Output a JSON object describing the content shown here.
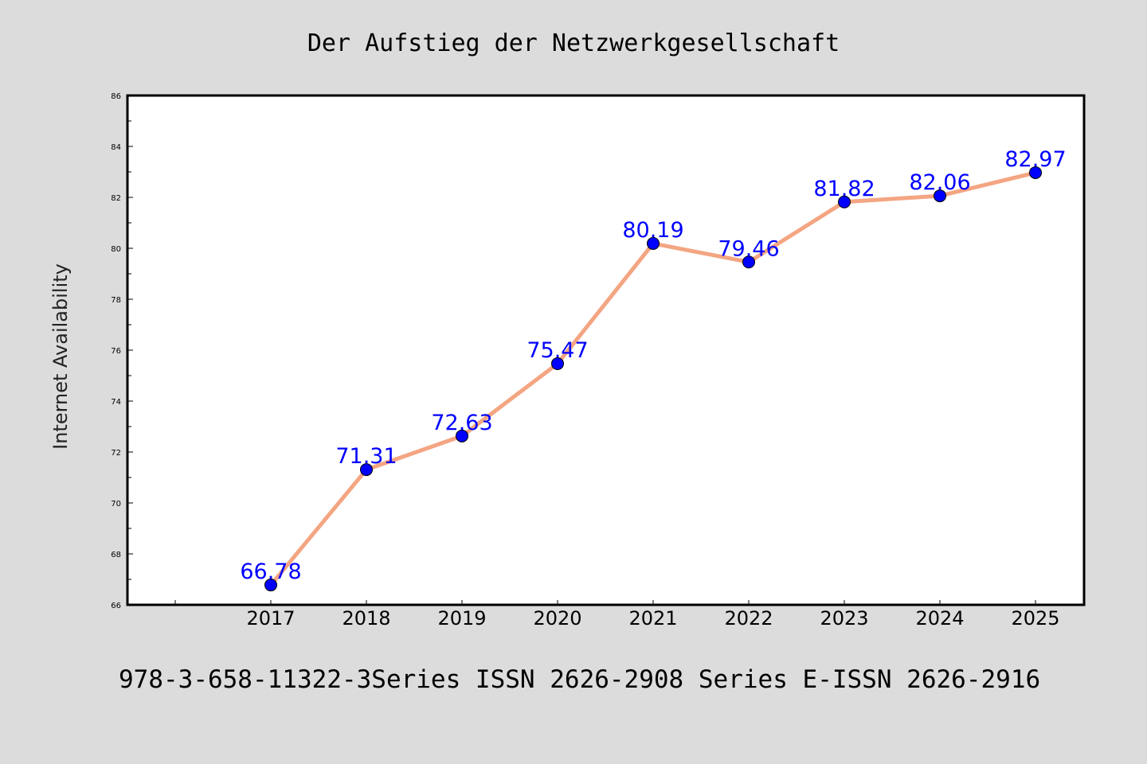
{
  "chart_data": {
    "type": "line",
    "title": "Der Aufstieg der Netzwerkgesellschaft",
    "xlabel": "",
    "ylabel": "Internet Availability",
    "categories": [
      "2017",
      "2018",
      "2019",
      "2020",
      "2021",
      "2022",
      "2023",
      "2024",
      "2025"
    ],
    "series": [
      {
        "values": [
          66.78,
          71.31,
          72.63,
          75.47,
          80.19,
          79.46,
          81.82,
          82.06,
          82.97
        ],
        "data_labels": [
          "66.78",
          "71.31",
          "72.63",
          "75.47",
          "80.19",
          "79.46",
          "81.82",
          "82.06",
          "82.97"
        ],
        "line_color": "#f4a582",
        "marker_color": "#0000ff"
      }
    ],
    "ylim": [
      66,
      86
    ],
    "yticks": [
      "66",
      "68",
      "70",
      "72",
      "74",
      "76",
      "78",
      "80",
      "82",
      "84",
      "86"
    ],
    "grid": false,
    "legend": "none",
    "footer": "978-3-658-11322-3Series ISSN 2626-2908 Series E-ISSN 2626-2916"
  },
  "colors": {
    "background": "#dcdcdc",
    "plot_background": "#ffffff",
    "axis": "#000000",
    "label": "#0000ff"
  }
}
